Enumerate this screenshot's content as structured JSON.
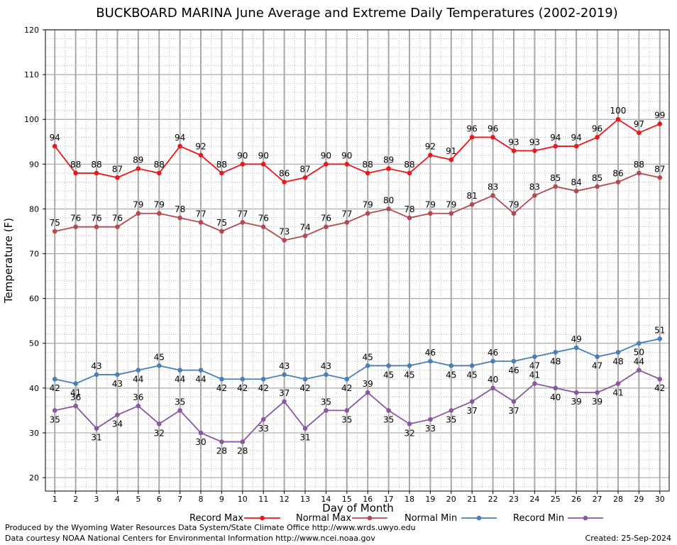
{
  "title": "BUCKBOARD MARINA June Average and Extreme Daily Temperatures (2002-2019)",
  "footer": {
    "produced_by": "Produced by the Wyoming Water Resources Data System/State Climate Office http://www.wrds.uwyo.edu",
    "courtesy": "Data courtesy NOAA National Centers for Environmental Information http://www.ncei.noaa.gov",
    "created": "Created:  25-Sep-2024"
  },
  "chart_data": {
    "type": "line",
    "title": "BUCKBOARD MARINA June Average and Extreme Daily Temperatures (2002-2019)",
    "xlabel": "Day of Month",
    "ylabel": "Temperature (F)",
    "xlim": [
      0.55,
      30.45
    ],
    "ylim": [
      17,
      120
    ],
    "yticks": [
      20,
      30,
      40,
      50,
      60,
      70,
      80,
      90,
      100,
      110,
      120
    ],
    "x": [
      1,
      2,
      3,
      4,
      5,
      6,
      7,
      8,
      9,
      10,
      11,
      12,
      13,
      14,
      15,
      16,
      17,
      18,
      19,
      20,
      21,
      22,
      23,
      24,
      25,
      26,
      27,
      28,
      29,
      30
    ],
    "grid": true,
    "legend_position": "bottom",
    "series": [
      {
        "name": "Record Max",
        "color": "#e8191c",
        "values": [
          94,
          88,
          88,
          87,
          89,
          88,
          94,
          92,
          88,
          90,
          90,
          86,
          87,
          90,
          90,
          88,
          89,
          88,
          92,
          91,
          96,
          96,
          93,
          93,
          94,
          94,
          96,
          100,
          97,
          99
        ]
      },
      {
        "name": "Normal Max",
        "color": "#b5494f",
        "values": [
          75,
          76,
          76,
          76,
          79,
          79,
          78,
          77,
          75,
          77,
          76,
          73,
          74,
          76,
          77,
          79,
          80,
          78,
          79,
          79,
          81,
          83,
          79,
          83,
          85,
          84,
          85,
          86,
          88,
          87
        ]
      },
      {
        "name": "Normal Min",
        "color": "#4a7fb5",
        "values": [
          42,
          41,
          43,
          43,
          44,
          45,
          44,
          44,
          42,
          42,
          42,
          43,
          42,
          43,
          42,
          45,
          45,
          45,
          46,
          45,
          45,
          46,
          46,
          47,
          48,
          49,
          47,
          48,
          50,
          51
        ]
      },
      {
        "name": "Record Min",
        "color": "#8a58a0",
        "values": [
          35,
          36,
          31,
          34,
          36,
          32,
          35,
          30,
          28,
          28,
          33,
          37,
          31,
          35,
          35,
          39,
          35,
          32,
          33,
          35,
          37,
          40,
          37,
          41,
          40,
          39,
          39,
          41,
          44,
          42
        ]
      }
    ]
  }
}
